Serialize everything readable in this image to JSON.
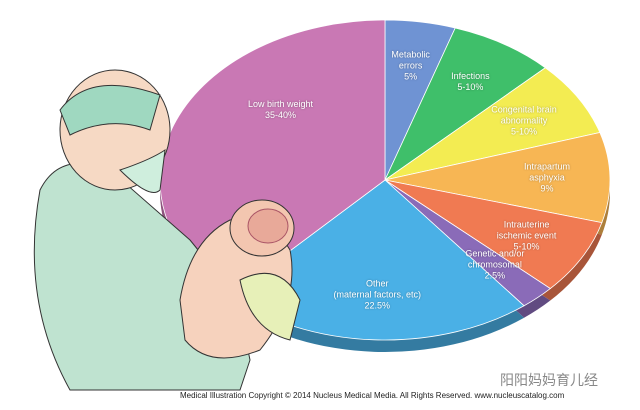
{
  "chart_data": {
    "type": "pie",
    "categories": [
      "Metabolic\nerrors",
      "Infections",
      "Congenital brain\nabnormality",
      "Intrapartum\nasphyxia",
      "Intrauterine\nischemic event",
      "Genetic and/or\nchromosomal",
      "Other\n(maternal factors, etc)",
      "Low birth weight"
    ],
    "values": [
      5,
      7.5,
      7.5,
      9,
      7.5,
      2.5,
      22.5,
      37.5
    ],
    "value_labels": [
      "5%",
      "5-10%",
      "5-10%",
      "9%",
      "5-10%",
      "2.5%",
      "22.5%",
      "35-40%"
    ],
    "colors": [
      "#6f93d3",
      "#3fbf6a",
      "#f3ec52",
      "#f7b654",
      "#f07a52",
      "#8a6bb8",
      "#4ab0e6",
      "#c978b4"
    ]
  },
  "footer": {
    "copyright": "Medical Illustration Copyright © 2014 Nucleus Medical Media.  All Rights Reserved.  www.nucleuscatalog.com",
    "watermark": "阳阳妈妈育儿经"
  }
}
